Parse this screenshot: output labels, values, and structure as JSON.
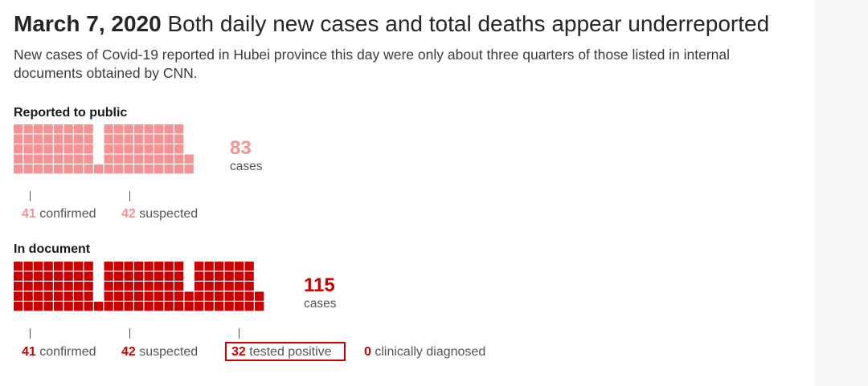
{
  "headline": {
    "date": "March 7, 2020",
    "text": "Both daily new cases and total deaths appear underreported"
  },
  "subtitle": "New cases of Covid-19 reported in Hubei province this day were only about three quarters of those listed in internal documents obtained by CNN.",
  "colors": {
    "public": "#f59294",
    "document": "#cc0000"
  },
  "chart_data": {
    "type": "waffle",
    "unit": "cases",
    "groups": [
      {
        "label": "Reported to public",
        "total": 83,
        "total_text": "83",
        "unit_text": "cases",
        "categories": [
          {
            "name": "confirmed",
            "value": 41
          },
          {
            "name": "suspected",
            "value": 42
          }
        ]
      },
      {
        "label": "In document",
        "total": 115,
        "total_text": "115",
        "unit_text": "cases",
        "categories": [
          {
            "name": "confirmed",
            "value": 41
          },
          {
            "name": "suspected",
            "value": 42
          },
          {
            "name": "tested positive",
            "value": 32,
            "highlighted": true
          },
          {
            "name": "clinically diagnosed",
            "value": 0
          }
        ]
      }
    ]
  }
}
